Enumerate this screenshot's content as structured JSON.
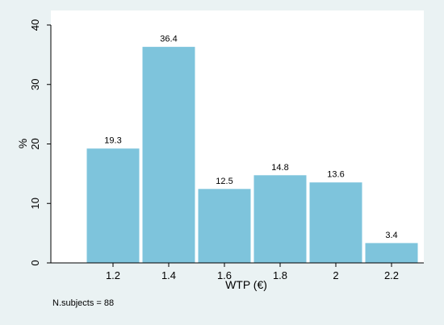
{
  "chart_data": {
    "type": "bar",
    "x": [
      1.2,
      1.4,
      1.6,
      1.8,
      2.0,
      2.2
    ],
    "values": [
      19.3,
      36.4,
      12.5,
      14.8,
      13.6,
      3.4
    ],
    "value_labels": [
      "19.3",
      "36.4",
      "12.5",
      "14.8",
      "13.6",
      "3.4"
    ],
    "xticks": [
      "1.2",
      "1.4",
      "1.6",
      "1.8",
      "2",
      "2.2"
    ],
    "yticks": [
      "0",
      "10",
      "20",
      "30",
      "40"
    ],
    "ytick_values": [
      0,
      10,
      20,
      30,
      40
    ],
    "xlabel": "WTP (€)",
    "ylabel": "%",
    "ylim": [
      0,
      40
    ],
    "grid": false,
    "note": "N.subjects = 88",
    "colors": {
      "bar": "#7ec4dc",
      "plot_background": "#ffffff",
      "outer_background": "#eaf2f3"
    }
  }
}
